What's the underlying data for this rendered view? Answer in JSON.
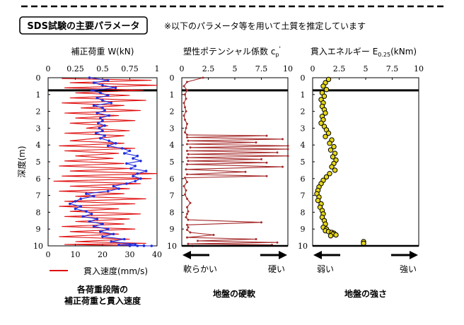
{
  "header": {
    "badge": "SDS試験の主要パラメータ",
    "note": "※以下のパラメータ等を用いて土質を推定しています"
  },
  "depth_axis": {
    "label": "深度(m)",
    "ticks": [
      "0",
      "1",
      "2",
      "3",
      "4",
      "5",
      "6",
      "7",
      "8",
      "9",
      "10"
    ]
  },
  "panels": {
    "load": {
      "top_title": "補正荷重 W(kN)",
      "top_ticks": [
        "0",
        "0.25",
        "0.5",
        "0.75",
        "1"
      ],
      "bottom_ticks": [
        "0",
        "10",
        "20",
        "30",
        "40"
      ],
      "legend_label": "貫入速度(mm/s)",
      "caption_line1": "各荷重段階の",
      "caption_line2": "補正荷重と貫入速度",
      "colors": {
        "load": "#1f2fe0",
        "speed": "#e01010"
      }
    },
    "cp": {
      "title_main": "塑性ポテンシャル係数 c",
      "title_sub": "p",
      "title_sup": "'",
      "top_ticks": [
        "0",
        "2.5",
        "5",
        "7.5",
        "10"
      ],
      "arrow_left": "軟らかい",
      "arrow_right": "硬い",
      "caption": "地盤の硬軟",
      "color": "#a52a2a"
    },
    "energy": {
      "title_main": "貫入エネルギー E",
      "title_sub": "0.25",
      "title_unit": "(kNm)",
      "top_ticks": [
        "0",
        "2.5",
        "5",
        "7.5",
        "10"
      ],
      "arrow_left": "弱い",
      "arrow_right": "強い",
      "caption": "地盤の強さ",
      "marker_fill": "#e6d71a"
    }
  },
  "chart_data": [
    {
      "type": "line",
      "title": "補正荷重 W(kN)",
      "xlabel": "補正荷重 W(kN)",
      "ylabel": "深度(m)",
      "xlim": [
        0,
        1
      ],
      "ylim": [
        10,
        0
      ],
      "series": [
        {
          "name": "補正荷重",
          "x": [
            0.38,
            0.55,
            0.42,
            0.5,
            0.62,
            0.4,
            0.48,
            0.55,
            0.45,
            0.5,
            0.58,
            0.42,
            0.5,
            0.52,
            0.45,
            0.56,
            0.48,
            0.5,
            0.46,
            0.52,
            0.47,
            0.5,
            0.44,
            0.52,
            0.48,
            0.56,
            0.62,
            0.55,
            0.68,
            0.75,
            0.7,
            0.82,
            0.78,
            0.85,
            0.72,
            0.8,
            0.76,
            0.9,
            0.82,
            0.78,
            0.85,
            0.8,
            0.72,
            0.6,
            0.65,
            0.55,
            0.35,
            0.42,
            0.3,
            0.25,
            0.2,
            0.3,
            0.25,
            0.35,
            0.4,
            0.32,
            0.45,
            0.38,
            0.5,
            0.42,
            0.55,
            0.48,
            0.6,
            0.5,
            0.7,
            0.58,
            0.8,
            0.65,
            0.88,
            0.75,
            0.82,
            0.95,
            0.88
          ],
          "y": [
            0,
            0.15,
            0.3,
            0.45,
            0.6,
            0.75,
            0.9,
            1.05,
            1.2,
            1.35,
            1.5,
            1.65,
            1.8,
            1.95,
            2.1,
            2.25,
            2.4,
            2.55,
            2.7,
            2.85,
            3,
            3.15,
            3.3,
            3.45,
            3.6,
            3.75,
            3.9,
            4.05,
            4.2,
            4.35,
            4.5,
            4.65,
            4.8,
            4.95,
            5.1,
            5.25,
            5.4,
            5.55,
            5.7,
            5.85,
            6,
            6.15,
            6.3,
            6.45,
            6.6,
            6.75,
            6.9,
            7.05,
            7.2,
            7.35,
            7.5,
            7.65,
            7.8,
            7.95,
            8.1,
            8.25,
            8.4,
            8.55,
            8.7,
            8.85,
            9,
            9.15,
            9.3,
            9.45,
            9.6,
            9.75,
            9.9,
            9.95,
            9.98,
            10,
            10,
            10,
            10
          ]
        }
      ]
    },
    {
      "type": "line",
      "title": "貫入速度(mm/s)",
      "xlabel": "貫入速度(mm/s)",
      "ylabel": "深度(m)",
      "xlim": [
        0,
        40
      ],
      "ylim": [
        10,
        0
      ],
      "series": [
        {
          "name": "貫入速度",
          "x": [
            5,
            38,
            8,
            40,
            6,
            35,
            10,
            30,
            8,
            36,
            5,
            28,
            12,
            34,
            6,
            26,
            10,
            32,
            8,
            22,
            14,
            30,
            6,
            28,
            18,
            8,
            28,
            4,
            32,
            6,
            26,
            10,
            24,
            6,
            28,
            4,
            30,
            8,
            40,
            5,
            38,
            2,
            34,
            8,
            30,
            4,
            28,
            10,
            36,
            6,
            32,
            4,
            26,
            8,
            34,
            6,
            30,
            10,
            28,
            5,
            32,
            8,
            26,
            4,
            30,
            10,
            36,
            6,
            38
          ],
          "y": [
            0.05,
            0.15,
            0.3,
            0.45,
            0.6,
            0.75,
            0.9,
            1.05,
            1.2,
            1.35,
            1.5,
            1.65,
            1.8,
            1.95,
            2.1,
            2.25,
            2.4,
            2.55,
            2.7,
            2.85,
            3,
            3.15,
            3.3,
            3.45,
            3.6,
            3.75,
            3.9,
            4.05,
            4.2,
            4.35,
            4.5,
            4.65,
            4.8,
            4.95,
            5.1,
            5.25,
            5.4,
            5.55,
            5.7,
            5.85,
            6,
            6.15,
            6.3,
            6.45,
            6.6,
            6.75,
            6.9,
            7.05,
            7.2,
            7.35,
            7.5,
            7.65,
            7.8,
            7.95,
            8.1,
            8.25,
            8.4,
            8.55,
            8.7,
            8.85,
            9,
            9.15,
            9.3,
            9.45,
            9.6,
            9.75,
            9.85,
            9.92,
            10
          ]
        }
      ]
    },
    {
      "type": "line",
      "title": "塑性ポテンシャル係数 cp'",
      "xlabel": "塑性ポテンシャル係数 cp'",
      "ylabel": "深度(m)",
      "xlim": [
        0,
        10
      ],
      "ylim": [
        10,
        0
      ],
      "series": [
        {
          "name": "cp'",
          "x": [
            2,
            0.5,
            0.2,
            0.5,
            0.3,
            0.4,
            0.2,
            0.3,
            0.4,
            0.2,
            0.3,
            0.5,
            0.4,
            0.3,
            0.5,
            8,
            0.5,
            9.5,
            0.6,
            7,
            0.5,
            10,
            0.8,
            10,
            0.5,
            9,
            0.6,
            10,
            0.5,
            7.5,
            0.6,
            8,
            0.5,
            9.5,
            0.4,
            6,
            0.5,
            8,
            0.3,
            0.5,
            0.2,
            0.4,
            0.3,
            0.5,
            0.8,
            0.5,
            0.6,
            0.5,
            0.4,
            0.6,
            7.5,
            0.5,
            0.6,
            0.5,
            0.8,
            3,
            0.5,
            7,
            1.5,
            9,
            0.6,
            8.5,
            1
          ],
          "y": [
            0,
            0.25,
            0.5,
            0.75,
            1,
            1.25,
            1.5,
            1.75,
            2,
            2.25,
            2.5,
            2.75,
            3,
            3.25,
            3.4,
            3.45,
            3.55,
            3.65,
            3.75,
            3.85,
            3.95,
            4.05,
            4.15,
            4.25,
            4.35,
            4.45,
            4.55,
            4.65,
            4.75,
            4.85,
            4.95,
            5.05,
            5.15,
            5.3,
            5.45,
            5.6,
            5.75,
            5.85,
            5.95,
            6.2,
            6.45,
            6.7,
            6.95,
            7.2,
            7.45,
            7.7,
            7.95,
            8.1,
            8.3,
            8.45,
            8.6,
            8.75,
            8.9,
            9.05,
            9.2,
            9.35,
            9.5,
            9.6,
            9.7,
            9.8,
            9.88,
            9.94,
            10
          ]
        }
      ]
    },
    {
      "type": "scatter",
      "title": "貫入エネルギー E0.25(kNm)",
      "xlabel": "貫入エネルギー E0.25(kNm)",
      "ylabel": "深度(m)",
      "xlim": [
        0,
        10
      ],
      "ylim": [
        10,
        0
      ],
      "series": [
        {
          "name": "E0.25",
          "x": [
            1.5,
            1.2,
            1.0,
            1.3,
            0.9,
            1.1,
            0.8,
            1.0,
            0.9,
            1.1,
            1.2,
            0.9,
            1.0,
            0.8,
            1.1,
            1.3,
            1.5,
            1.2,
            1.8,
            1.6,
            2.0,
            1.7,
            2.1,
            1.9,
            2.2,
            2.0,
            1.8,
            2.1,
            1.6,
            1.3,
            1.0,
            0.8,
            0.6,
            0.5,
            0.4,
            0.6,
            0.5,
            0.8,
            0.7,
            0.9,
            1.0,
            0.9,
            1.1,
            1.2,
            1.0,
            1.3,
            1.2,
            1.5,
            1.8,
            2.0,
            1.9,
            2.2,
            1.7,
            4.8,
            4.8
          ],
          "y": [
            0.1,
            0.3,
            0.5,
            0.7,
            0.9,
            1.1,
            1.3,
            1.5,
            1.7,
            1.9,
            2.1,
            2.3,
            2.5,
            2.7,
            2.9,
            3.1,
            3.3,
            3.5,
            3.7,
            3.9,
            4.1,
            4.3,
            4.5,
            4.7,
            4.9,
            5.1,
            5.3,
            5.5,
            5.7,
            5.9,
            6.1,
            6.3,
            6.5,
            6.7,
            6.9,
            7.1,
            7.3,
            7.5,
            7.7,
            7.9,
            8.1,
            8.3,
            8.5,
            8.7,
            8.9,
            9.0,
            9.1,
            9.15,
            9.2,
            9.25,
            9.3,
            9.35,
            9.4,
            9.75,
            9.85
          ]
        }
      ]
    }
  ]
}
